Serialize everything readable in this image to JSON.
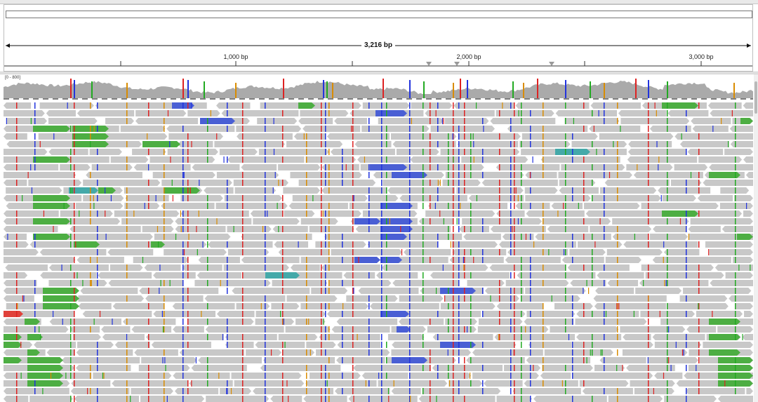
{
  "ruler": {
    "span_label": "3,216 bp",
    "ticks": [
      {
        "label": "1,000 bp"
      },
      {
        "label": "2,000 bp"
      },
      {
        "label": "3,000 bp"
      }
    ]
  },
  "coverage": {
    "range_label": "[0 - 800]"
  },
  "colors": {
    "read_fill": "#c8c8c8",
    "coverage_fill": "#aaaaaa",
    "insert_large": "#4dae43",
    "insert_small": "#4a5fd4",
    "inter_chrom": "#44a9a9",
    "soft_clip_red": "#e0413a",
    "mismatch_A": "#22aa22",
    "mismatch_C": "#2233dd",
    "mismatch_G": "#d98c00",
    "mismatch_T": "#dd2222"
  }
}
